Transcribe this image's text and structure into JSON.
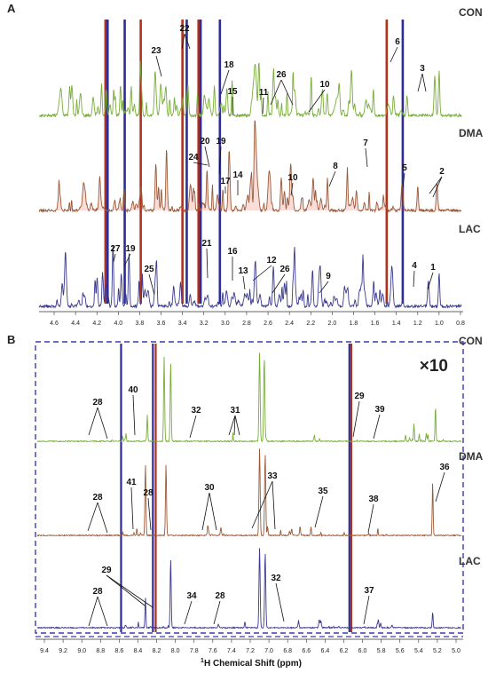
{
  "colors": {
    "con": "#79ad3a",
    "dma": "#9a5a38",
    "dma_fill": "#e23b2e",
    "lac": "#3b3a8f",
    "dash": "#3b3ab0",
    "tall_red": "#b0321e",
    "tall_blue": "#2c2c9a"
  },
  "chart_data": [
    {
      "panel": "A",
      "type": "line",
      "traces": [
        "CON",
        "DMA",
        "LAC"
      ],
      "x_reversed": true,
      "xlim": [
        4.7,
        0.6
      ],
      "ticks": [
        "4.6",
        "4.4",
        "4.2",
        "4.0",
        "3.8",
        "3.6",
        "3.4",
        "3.2",
        "3.0",
        "2.8",
        "2.6",
        "2.4",
        "2.2",
        "2.0",
        "1.8",
        "1.6",
        "1.4",
        "1.2",
        "1.0",
        "0.8"
      ],
      "annotations": {
        "CON": [
          "22",
          "23",
          "18",
          "15",
          "11",
          "26",
          "10",
          "6",
          "3"
        ],
        "DMA": [
          "24",
          "20",
          "19",
          "17",
          "14",
          "10",
          "8",
          "7",
          "5",
          "2"
        ],
        "LAC": [
          "27",
          "19",
          "25",
          "21",
          "16",
          "13",
          "12",
          "26",
          "9",
          "4",
          "1"
        ]
      }
    },
    {
      "panel": "B",
      "type": "line",
      "traces": [
        "CON",
        "DMA",
        "LAC"
      ],
      "x_reversed": true,
      "xlim": [
        9.5,
        5.0
      ],
      "scale_note": "×10",
      "xlabel_sup": "1",
      "xlabel": "H Chemical Shift (ppm)",
      "ticks": [
        "9.4",
        "9.2",
        "9.0",
        "8.8",
        "8.6",
        "8.4",
        "8.2",
        "8.0",
        "7.8",
        "7.6",
        "7.4",
        "7.2",
        "7.0",
        "6.8",
        "6.6",
        "6.4",
        "6.2",
        "6.0",
        "5.8",
        "5.6",
        "5.4",
        "5.2",
        "5.0"
      ],
      "annotations": {
        "CON": [
          "28",
          "40",
          "32",
          "31",
          "29",
          "39"
        ],
        "DMA": [
          "28",
          "41",
          "28",
          "30",
          "33",
          "35",
          "38",
          "36"
        ],
        "LAC": [
          "28",
          "29",
          "34",
          "28",
          "32",
          "37"
        ]
      }
    }
  ]
}
